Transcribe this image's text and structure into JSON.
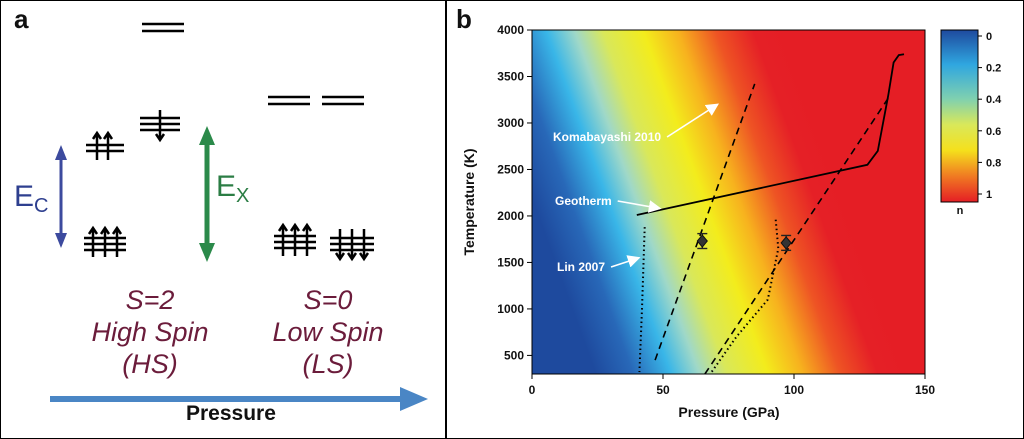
{
  "panel_a": {
    "letter": "a",
    "ec_main": "E",
    "ec_sub": "C",
    "ex_main": "E",
    "ex_sub": "X",
    "hs": {
      "line1": "S=2",
      "line2": "High Spin",
      "line3": "(HS)"
    },
    "ls": {
      "line1": "S=0",
      "line2": "Low Spin",
      "line3": "(LS)"
    },
    "pressure_label": "Pressure",
    "colors": {
      "ec_arrow": "#3c4a9e",
      "ex_arrow": "#2b8a4a",
      "pressure_arrow": "#4a86c5",
      "spin_text": "#6b1c3b"
    }
  },
  "panel_b": {
    "letter": "b",
    "chart_data": {
      "type": "heatmap",
      "xlabel": "Pressure (GPa)",
      "ylabel": "Temperature (K)",
      "xlim": [
        0,
        150
      ],
      "ylim": [
        300,
        4000
      ],
      "xticks": [
        "0",
        "50",
        "100",
        "150"
      ],
      "yticks": [
        "500",
        "1000",
        "1500",
        "2000",
        "2500",
        "3000",
        "3500",
        "4000"
      ],
      "colorbar": {
        "label": "n",
        "ticks": [
          "0",
          "0.2",
          "0.4",
          "0.6",
          "0.8",
          "1"
        ],
        "range": [
          0,
          1
        ]
      },
      "annotations": [
        {
          "text": "Komabayashi 2010",
          "target": [
            72,
            3200
          ]
        },
        {
          "text": "Geotherm",
          "target": [
            50,
            2080
          ]
        },
        {
          "text": "Lin 2007",
          "target": [
            42,
            1550
          ]
        }
      ],
      "series": [
        {
          "style": "solid",
          "points": [
            [
              40,
              2010
            ],
            [
              128,
              2550
            ],
            [
              132,
              2700
            ],
            [
              136,
              3300
            ],
            [
              138,
              3650
            ],
            [
              140,
              3730
            ],
            [
              142,
              3740
            ]
          ]
        },
        {
          "style": "dashed",
          "points": [
            [
              47,
              450
            ],
            [
              85,
              3420
            ]
          ]
        },
        {
          "style": "dashed",
          "points": [
            [
              66,
              300
            ],
            [
              137,
              3310
            ]
          ]
        },
        {
          "style": "dotted",
          "points": [
            [
              43,
              1880
            ],
            [
              42,
              1000
            ],
            [
              41,
              320
            ]
          ]
        },
        {
          "style": "dotted",
          "points": [
            [
              93,
              1960
            ],
            [
              94,
              1650
            ],
            [
              90,
              1100
            ],
            [
              78,
              700
            ],
            [
              68,
              300
            ]
          ]
        }
      ],
      "data_points": [
        {
          "x": 65,
          "y": 1730,
          "err": 80
        },
        {
          "x": 97,
          "y": 1710,
          "err": 80
        }
      ]
    }
  }
}
